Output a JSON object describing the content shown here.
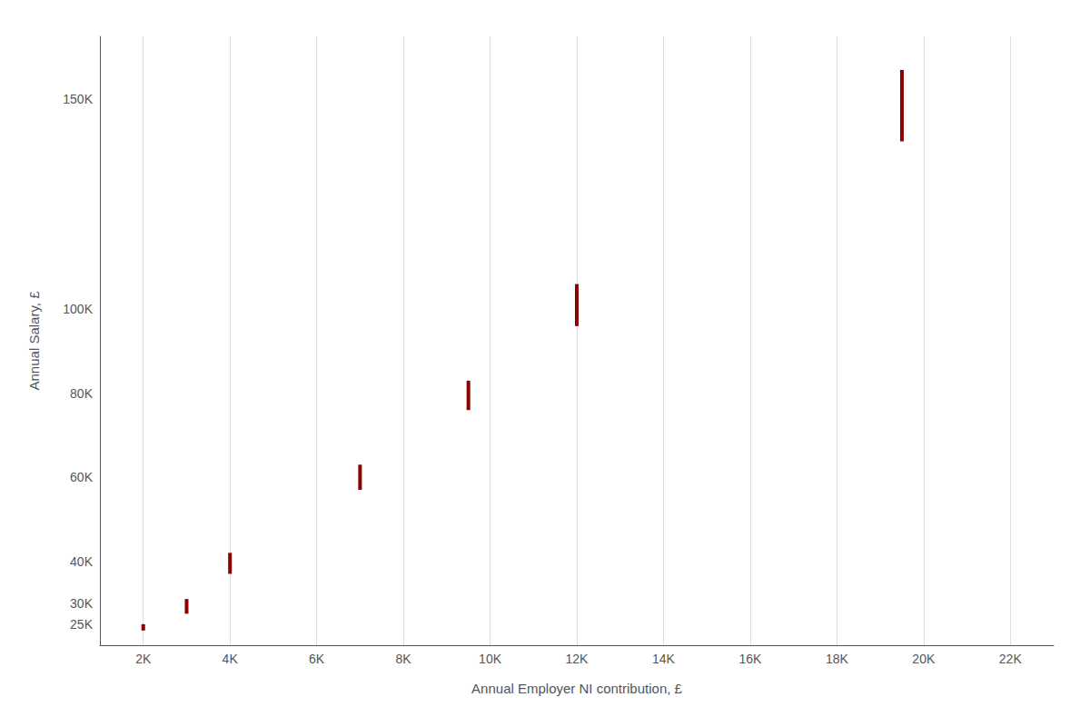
{
  "chart_data": {
    "type": "range",
    "xlabel": "Annual Employer NI contribution, £",
    "ylabel": "Annual Salary, £",
    "color": "#8B0000",
    "x": [
      2000,
      3000,
      4000,
      7000,
      9500,
      12000,
      19500
    ],
    "y_low": [
      23500,
      27500,
      37000,
      57000,
      76000,
      96000,
      140000
    ],
    "y_high": [
      25000,
      31000,
      42000,
      63000,
      83000,
      106000,
      157000
    ],
    "xlim": [
      1000,
      23000
    ],
    "ylim": [
      20000,
      165000
    ],
    "xticks": [
      {
        "value": 2000,
        "label": "2K"
      },
      {
        "value": 4000,
        "label": "4K"
      },
      {
        "value": 6000,
        "label": "6K"
      },
      {
        "value": 8000,
        "label": "8K"
      },
      {
        "value": 10000,
        "label": "10K"
      },
      {
        "value": 12000,
        "label": "12K"
      },
      {
        "value": 14000,
        "label": "14K"
      },
      {
        "value": 16000,
        "label": "16K"
      },
      {
        "value": 18000,
        "label": "18K"
      },
      {
        "value": 20000,
        "label": "20K"
      },
      {
        "value": 22000,
        "label": "22K"
      }
    ],
    "yticks": [
      {
        "value": 25000,
        "label": "25K"
      },
      {
        "value": 30000,
        "label": "30K"
      },
      {
        "value": 40000,
        "label": "40K"
      },
      {
        "value": 60000,
        "label": "60K"
      },
      {
        "value": 80000,
        "label": "80K"
      },
      {
        "value": 100000,
        "label": "100K"
      },
      {
        "value": 150000,
        "label": "150K"
      }
    ],
    "grid": "x"
  }
}
